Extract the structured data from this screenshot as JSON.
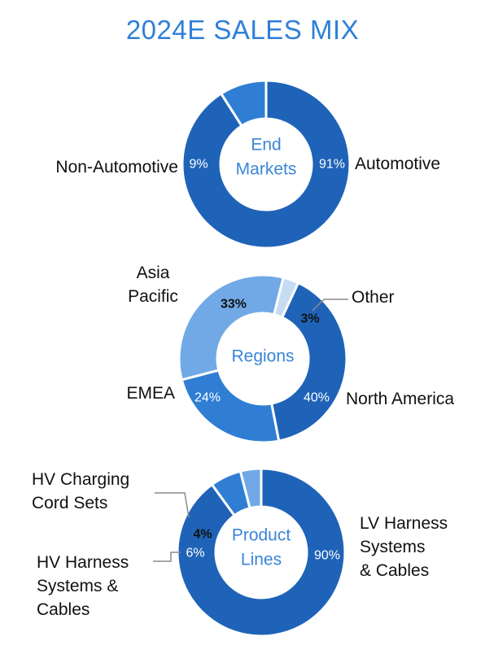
{
  "title": "2024E SALES MIX",
  "colors": {
    "dark": "#1f63b8",
    "medium": "#2f7ed4",
    "light": "#70a9e6",
    "pale": "#c6dcf3",
    "center_text": "#3a86d8",
    "title": "#2f7fd8"
  },
  "chart_data": [
    {
      "type": "pie",
      "title": "",
      "center_label": [
        "End",
        "Markets"
      ],
      "categories": [
        "Automotive",
        "Non-Automotive"
      ],
      "values": [
        91,
        9
      ],
      "value_labels": [
        "91%",
        "9%"
      ],
      "category_labels": [
        [
          "Automotive"
        ],
        [
          "Non-Automotive"
        ]
      ],
      "colors": [
        "#1f63b8",
        "#2f7ed4"
      ]
    },
    {
      "type": "pie",
      "title": "",
      "center_label": [
        "Regions"
      ],
      "categories": [
        "North America",
        "EMEA",
        "Asia Pacific",
        "Other"
      ],
      "values": [
        40,
        24,
        33,
        3
      ],
      "value_labels": [
        "40%",
        "24%",
        "33%",
        "3%"
      ],
      "category_labels": [
        [
          "North America"
        ],
        [
          "EMEA"
        ],
        [
          "Asia",
          "Pacific"
        ],
        [
          "Other"
        ]
      ],
      "colors": [
        "#1f63b8",
        "#2f7ed4",
        "#70a9e6",
        "#c6dcf3"
      ]
    },
    {
      "type": "pie",
      "title": "",
      "center_label": [
        "Product",
        "Lines"
      ],
      "categories": [
        "LV Harness Systems & Cables",
        "HV Harness Systems & Cables",
        "HV Charging Cord Sets"
      ],
      "values": [
        90,
        6,
        4
      ],
      "value_labels": [
        "90%",
        "6%",
        "4%"
      ],
      "category_labels": [
        [
          "LV Harness",
          "Systems",
          "& Cables"
        ],
        [
          "HV Harness",
          "Systems &",
          "Cables"
        ],
        [
          "HV Charging",
          "Cord Sets"
        ]
      ],
      "colors": [
        "#1f63b8",
        "#2f7ed4",
        "#70a9e6"
      ]
    }
  ]
}
